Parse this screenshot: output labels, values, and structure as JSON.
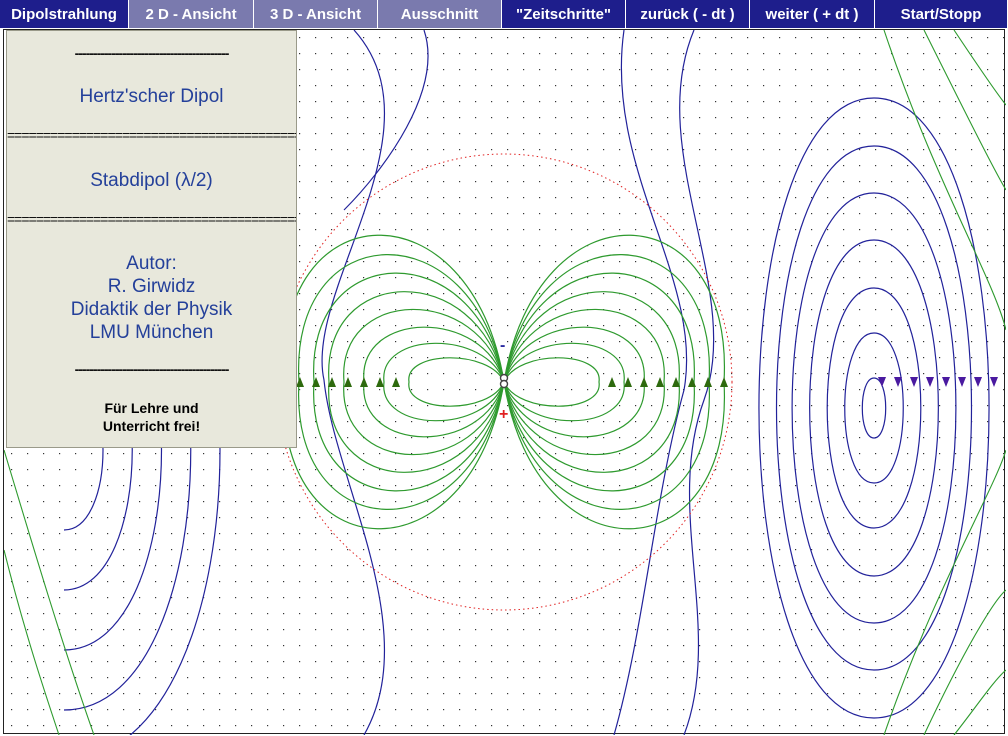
{
  "menu": [
    {
      "label": "Dipolstrahlung",
      "style": "dark"
    },
    {
      "label": "2 D - Ansicht",
      "style": "light"
    },
    {
      "label": "3 D - Ansicht",
      "style": "light"
    },
    {
      "label": "Ausschnitt",
      "style": "light"
    },
    {
      "label": "\"Zeitschritte\"",
      "style": "dark"
    },
    {
      "label": "zurück ( - dt )",
      "style": "dark"
    },
    {
      "label": "weiter ( + dt )",
      "style": "dark"
    },
    {
      "label": "Start/Stopp",
      "style": "dark"
    }
  ],
  "panel": {
    "dash_line": "------------------------------------------",
    "eq_line": "=========================================",
    "title": "Hertz'scher Dipol",
    "subtitle": "Stabdipol (λ/2)",
    "author_label": "Autor:",
    "author_name": "R. Girwidz",
    "author_dept": "Didaktik der Physik",
    "author_uni": "LMU München",
    "license_line1": "Für Lehre und",
    "license_line2": "Unterricht frei!"
  },
  "dipole": {
    "minus_sign": "-",
    "plus_sign": "+"
  },
  "colors": {
    "menu_dark": "#1e1e8c",
    "menu_light": "#7a7aae",
    "near_field_lines": "#2e9a2e",
    "far_field_lines": "#22229a",
    "arrows_green": "#2e6a0e",
    "arrows_purple": "#4a1aa0",
    "circle": "#e02020",
    "panel_bg": "#e8e8dc"
  }
}
